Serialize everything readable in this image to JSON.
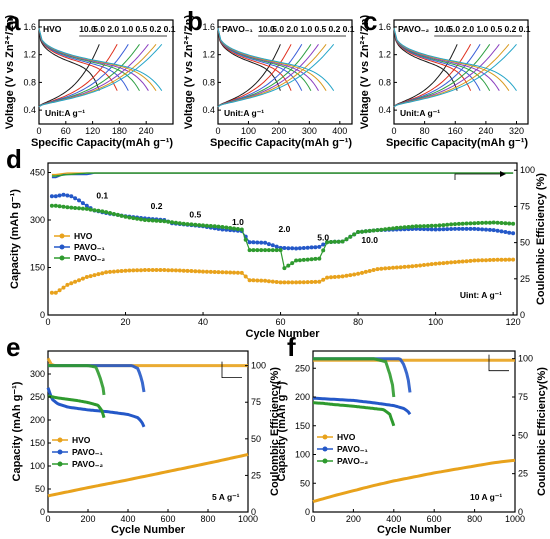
{
  "colors": {
    "hvo": "#e8a21c",
    "pavo1": "#2458c8",
    "pavo2": "#2e9a2e",
    "grid": "#000000"
  },
  "chart_data": [
    {
      "panel": "a",
      "type": "line",
      "label": "HVO",
      "xlabel": "Specific Capacity(mAh g⁻¹)",
      "ylabel": "Voltage (V vs Zn²⁺/Zn)",
      "xlim": [
        0,
        300
      ],
      "ylim": [
        0.2,
        1.7
      ],
      "xticks": [
        0,
        60,
        120,
        180,
        240
      ],
      "yticks": [
        0.4,
        0.8,
        1.2,
        1.6
      ],
      "unit_text": "Unit:A g⁻¹",
      "rates": [
        "10.0",
        "5.0",
        "2.0",
        "1.0",
        "0.5",
        "0.2",
        "0.1"
      ],
      "capacities": [
        135,
        175,
        200,
        225,
        245,
        262,
        275
      ],
      "curve_colors": [
        "#1a1a1a",
        "#e0301e",
        "#3a5fd8",
        "#2ea043",
        "#8b3fc0",
        "#d89a20",
        "#25a5c8"
      ]
    },
    {
      "panel": "b",
      "type": "line",
      "label": "PAVO₋₁",
      "xlabel": "Specific Capacity(mAh g⁻¹)",
      "ylabel": "Voltage (V vs Zn²⁺/Zn)",
      "xlim": [
        0,
        440
      ],
      "ylim": [
        0.2,
        1.7
      ],
      "xticks": [
        0,
        100,
        200,
        300,
        400
      ],
      "yticks": [
        0.4,
        0.8,
        1.2,
        1.6
      ],
      "unit_text": "Unit:A g⁻¹",
      "rates": [
        "10.0",
        "5.0",
        "2.0",
        "1.0",
        "0.5",
        "0.2",
        "0.1"
      ],
      "capacities": [
        205,
        240,
        275,
        305,
        330,
        355,
        380
      ],
      "curve_colors": [
        "#1a1a1a",
        "#e0301e",
        "#3a5fd8",
        "#2ea043",
        "#8b3fc0",
        "#d89a20",
        "#25a5c8"
      ]
    },
    {
      "panel": "c",
      "type": "line",
      "label": "PAVO₋₂",
      "xlabel": "Specific Capacity(mAh g⁻¹)",
      "ylabel": "Voltage (V vs Zn²⁺/Zn)",
      "xlim": [
        0,
        350
      ],
      "ylim": [
        0.2,
        1.7
      ],
      "xticks": [
        0,
        80,
        160,
        240,
        320
      ],
      "yticks": [
        0.4,
        0.8,
        1.2,
        1.6
      ],
      "unit_text": "Unit:A g⁻¹",
      "rates": [
        "10.0",
        "5.0",
        "2.0",
        "1.0",
        "0.5",
        "0.2",
        "0.1"
      ],
      "capacities": [
        165,
        200,
        225,
        250,
        275,
        300,
        320
      ],
      "curve_colors": [
        "#1a1a1a",
        "#e0301e",
        "#3a5fd8",
        "#2ea043",
        "#8b3fc0",
        "#d89a20",
        "#25a5c8"
      ]
    },
    {
      "panel": "d",
      "type": "line",
      "xlabel": "Cycle Number",
      "ylabel": "Capacity (mAh g⁻¹)",
      "y2label": "Coulombic Efficiency (%)",
      "xlim": [
        0,
        121
      ],
      "ylim": [
        0,
        480
      ],
      "y2lim": [
        0,
        105
      ],
      "xticks": [
        0,
        20,
        40,
        60,
        80,
        100,
        120
      ],
      "yticks": [
        0,
        150,
        300,
        450
      ],
      "y2ticks": [
        0,
        25,
        50,
        75,
        100
      ],
      "unit_text": "Uint: A g⁻¹",
      "rate_labels": [
        "0.1",
        "0.2",
        "0.5",
        "1.0",
        "2.0",
        "5.0",
        "10.0"
      ],
      "series": [
        {
          "name": "HVO",
          "color": "#e8a21c",
          "x": [
            2,
            5,
            10,
            15,
            20,
            25,
            30,
            35,
            40,
            45,
            50,
            52,
            56,
            60,
            64,
            70,
            72,
            76,
            80,
            85,
            90,
            95,
            100,
            105,
            110,
            115,
            120
          ],
          "y": [
            70,
            95,
            120,
            135,
            140,
            142,
            142,
            140,
            137,
            135,
            133,
            110,
            108,
            103,
            103,
            105,
            118,
            122,
            130,
            145,
            150,
            155,
            162,
            167,
            172,
            174,
            175
          ],
          "ce": [
            97,
            98,
            98,
            98,
            98,
            98,
            98,
            98,
            98,
            98,
            98,
            98,
            98,
            98,
            98,
            98,
            98,
            98,
            98,
            98,
            98,
            98,
            98,
            98,
            98,
            98,
            98
          ]
        },
        {
          "name": "PAVO₋₁",
          "color": "#2458c8",
          "x": [
            2,
            4,
            6,
            8,
            10,
            12,
            15,
            20,
            25,
            30,
            32,
            36,
            40,
            45,
            50,
            52,
            56,
            60,
            64,
            70,
            72,
            76,
            80,
            85,
            90,
            95,
            100,
            105,
            110,
            115,
            120
          ],
          "y": [
            375,
            380,
            375,
            362,
            345,
            330,
            322,
            312,
            305,
            300,
            290,
            285,
            280,
            270,
            265,
            230,
            228,
            212,
            210,
            215,
            230,
            232,
            262,
            268,
            270,
            272,
            270,
            272,
            272,
            268,
            258
          ],
          "ce": [
            95,
            97,
            97,
            97,
            97,
            98,
            98,
            98,
            98,
            98,
            98,
            98,
            98,
            98,
            98,
            98,
            98,
            98,
            98,
            98,
            98,
            98,
            98,
            98,
            98,
            98,
            98,
            98,
            98,
            98,
            98
          ]
        },
        {
          "name": "PAVO₋₂",
          "color": "#2e9a2e",
          "x": [
            2,
            5,
            10,
            15,
            20,
            25,
            30,
            35,
            40,
            45,
            50,
            52,
            56,
            60,
            61,
            64,
            70,
            72,
            76,
            80,
            85,
            90,
            95,
            100,
            105,
            110,
            115,
            120
          ],
          "y": [
            345,
            340,
            335,
            325,
            310,
            300,
            296,
            288,
            283,
            278,
            270,
            205,
            205,
            205,
            148,
            172,
            178,
            230,
            232,
            262,
            268,
            275,
            280,
            282,
            287,
            290,
            292,
            288
          ],
          "ce": [
            96,
            97,
            98,
            98,
            98,
            98,
            98,
            98,
            98,
            98,
            98,
            98,
            98,
            98,
            98,
            98,
            98,
            98,
            98,
            98,
            98,
            98,
            98,
            98,
            98,
            98,
            98,
            98
          ]
        }
      ]
    },
    {
      "panel": "e",
      "type": "line",
      "xlabel": "Cycle Number",
      "ylabel": "Capacity (mAh g⁻¹)",
      "y2label": "Coulombic Efficiency(%)",
      "xlim": [
        0,
        1000
      ],
      "ylim": [
        0,
        350
      ],
      "y2lim": [
        0,
        110
      ],
      "xticks": [
        0,
        200,
        400,
        600,
        800,
        1000
      ],
      "yticks": [
        0,
        50,
        100,
        150,
        200,
        250,
        300
      ],
      "y2ticks": [
        0,
        25,
        50,
        75,
        100
      ],
      "rate_text": "5 A g⁻¹",
      "series": [
        {
          "name": "HVO",
          "color": "#e8a21c",
          "x": [
            0,
            200,
            400,
            600,
            800,
            1000
          ],
          "y": [
            35,
            53,
            70,
            88,
            106,
            125
          ],
          "ce_x": [
            0,
            20,
            60,
            200,
            500,
            1000
          ],
          "ce": [
            105,
            100,
            100,
            100,
            100,
            100
          ]
        },
        {
          "name": "PAVO₋₁",
          "color": "#2458c8",
          "x": [
            0,
            20,
            50,
            100,
            200,
            300,
            400,
            450,
            470,
            480
          ],
          "y": [
            270,
            245,
            235,
            228,
            222,
            218,
            212,
            205,
            195,
            185
          ],
          "ce_x": [
            0,
            100,
            300,
            420,
            450,
            470,
            480
          ],
          "ce": [
            100,
            100,
            100,
            100,
            98,
            90,
            82
          ]
        },
        {
          "name": "PAVO₋₂",
          "color": "#2e9a2e",
          "x": [
            0,
            50,
            100,
            150,
            200,
            250,
            270,
            280
          ],
          "y": [
            252,
            248,
            245,
            242,
            238,
            232,
            220,
            205
          ],
          "ce_x": [
            0,
            100,
            200,
            240,
            260,
            275,
            280
          ],
          "ce": [
            100,
            100,
            100,
            99,
            92,
            85,
            80
          ]
        }
      ]
    },
    {
      "panel": "f",
      "type": "line",
      "xlabel": "Cycle Number",
      "ylabel": "Capacity (mAh g⁻¹)",
      "y2label": "Coulombic Efficiency(%)",
      "xlim": [
        0,
        1000
      ],
      "ylim": [
        0,
        280
      ],
      "y2lim": [
        0,
        105
      ],
      "xticks": [
        0,
        200,
        400,
        600,
        800,
        1000
      ],
      "yticks": [
        0,
        50,
        100,
        150,
        200,
        250
      ],
      "y2ticks": [
        0,
        25,
        50,
        75,
        100
      ],
      "rate_text": "10 A g⁻¹",
      "series": [
        {
          "name": "HVO",
          "color": "#e8a21c",
          "x": [
            0,
            100,
            200,
            300,
            400,
            500,
            600,
            700,
            800,
            900,
            1000
          ],
          "y": [
            18,
            28,
            37,
            46,
            54,
            61,
            68,
            74,
            80,
            86,
            90
          ],
          "ce_x": [
            0,
            200,
            500,
            1000
          ],
          "ce": [
            99,
            99,
            99,
            99
          ]
        },
        {
          "name": "PAVO₋₁",
          "color": "#2458c8",
          "x": [
            0,
            50,
            100,
            200,
            300,
            400,
            450,
            470,
            480
          ],
          "y": [
            198,
            197,
            196,
            194,
            190,
            185,
            180,
            175,
            170
          ],
          "ce_x": [
            0,
            100,
            300,
            430,
            450,
            470,
            480
          ],
          "ce": [
            100,
            100,
            100,
            100,
            96,
            88,
            78
          ]
        },
        {
          "name": "PAVO₋₂",
          "color": "#2e9a2e",
          "x": [
            0,
            50,
            100,
            200,
            300,
            350,
            380,
            400
          ],
          "y": [
            190,
            189,
            187,
            184,
            180,
            178,
            170,
            150
          ],
          "ce_x": [
            0,
            100,
            300,
            360,
            380,
            395,
            400
          ],
          "ce": [
            100,
            100,
            100,
            98,
            90,
            82,
            75
          ]
        }
      ]
    }
  ]
}
